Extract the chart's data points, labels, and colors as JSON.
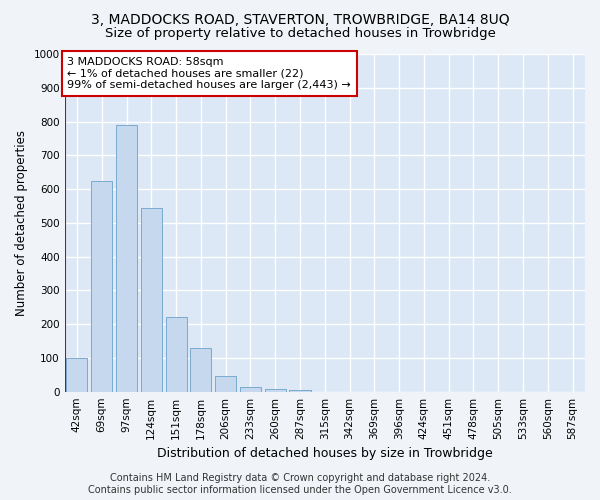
{
  "title": "3, MADDOCKS ROAD, STAVERTON, TROWBRIDGE, BA14 8UQ",
  "subtitle": "Size of property relative to detached houses in Trowbridge",
  "xlabel": "Distribution of detached houses by size in Trowbridge",
  "ylabel": "Number of detached properties",
  "categories": [
    "42sqm",
    "69sqm",
    "97sqm",
    "124sqm",
    "151sqm",
    "178sqm",
    "206sqm",
    "233sqm",
    "260sqm",
    "287sqm",
    "315sqm",
    "342sqm",
    "369sqm",
    "396sqm",
    "424sqm",
    "451sqm",
    "478sqm",
    "505sqm",
    "533sqm",
    "560sqm",
    "587sqm"
  ],
  "values": [
    100,
    625,
    790,
    545,
    220,
    130,
    45,
    13,
    8,
    5,
    0,
    0,
    0,
    0,
    0,
    0,
    0,
    0,
    0,
    0,
    0
  ],
  "bar_color": "#c5d8ed",
  "bar_edge_color": "#7aaad0",
  "highlight_color": "#cc0000",
  "annotation_text": "3 MADDOCKS ROAD: 58sqm\n← 1% of detached houses are smaller (22)\n99% of semi-detached houses are larger (2,443) →",
  "annotation_box_color": "#ffffff",
  "annotation_box_edge_color": "#cc0000",
  "ylim": [
    0,
    1000
  ],
  "yticks": [
    0,
    100,
    200,
    300,
    400,
    500,
    600,
    700,
    800,
    900,
    1000
  ],
  "bg_color": "#f0f4f8",
  "plot_bg_color": "#dce8f5",
  "grid_color": "#ffffff",
  "footer": "Contains HM Land Registry data © Crown copyright and database right 2024.\nContains public sector information licensed under the Open Government Licence v3.0.",
  "title_fontsize": 10,
  "subtitle_fontsize": 9.5,
  "xlabel_fontsize": 9,
  "ylabel_fontsize": 8.5,
  "tick_fontsize": 7.5,
  "footer_fontsize": 7,
  "annotation_fontsize": 8
}
